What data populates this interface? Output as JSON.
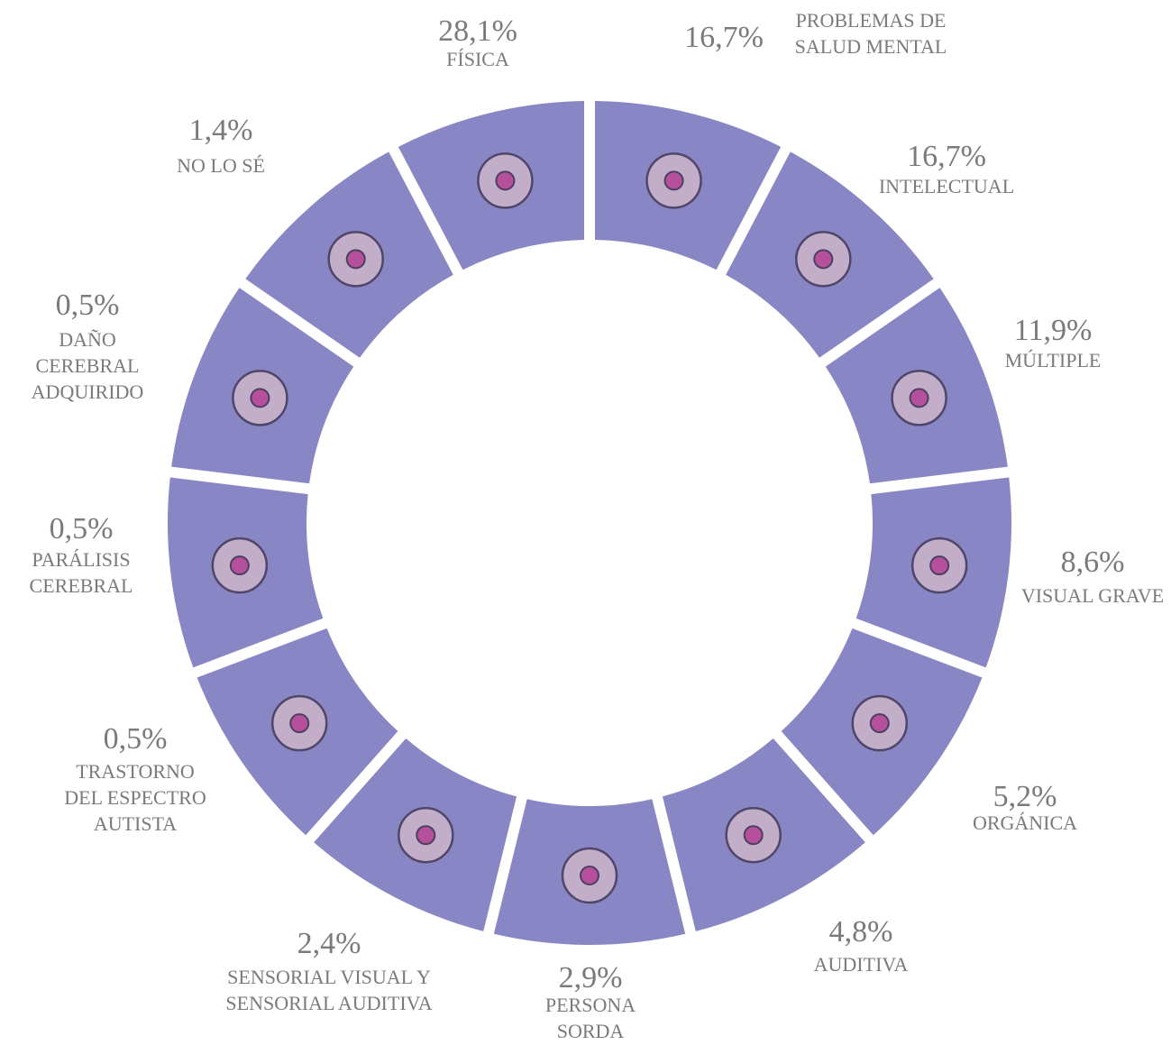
{
  "segments": [
    {
      "value": "28,1%",
      "label": [
        "FÍSICA"
      ]
    },
    {
      "value": "16,7%",
      "label": [
        "PROBLEMAS DE",
        "SALUD MENTAL"
      ]
    },
    {
      "value": "16,7%",
      "label": [
        "INTELECTUAL"
      ]
    },
    {
      "value": "11,9%",
      "label": [
        "MÚLTIPLE"
      ]
    },
    {
      "value": "8,6%",
      "label": [
        "VISUAL GRAVE"
      ]
    },
    {
      "value": "5,2%",
      "label": [
        "ORGÁNICA"
      ]
    },
    {
      "value": "4,8%",
      "label": [
        "AUDITIVA"
      ]
    },
    {
      "value": "2,9%",
      "label": [
        "PERSONA",
        "SORDA"
      ]
    },
    {
      "value": "2,4%",
      "label": [
        "SENSORIAL VISUAL Y",
        "SENSORIAL AUDITIVA"
      ]
    },
    {
      "value": "0,5%",
      "label": [
        "TRASTORNO",
        "DEL ESPECTRO",
        "AUTISTA"
      ]
    },
    {
      "value": "0,5%",
      "label": [
        "PARÁLISIS",
        "CEREBRAL"
      ]
    },
    {
      "value": "0,5%",
      "label": [
        "DAÑO",
        "CEREBRAL",
        "ADQUIRIDO"
      ]
    },
    {
      "value": "1,4%",
      "label": [
        "NO LO SÉ"
      ]
    }
  ]
}
